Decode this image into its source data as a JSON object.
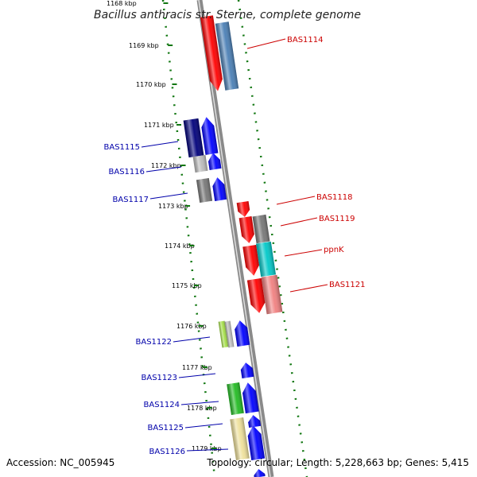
{
  "title": "Bacillus anthracis str. Sterne, complete genome",
  "accession": "Accession: NC_005945",
  "summary": "Topology: circular; Length: 5,228,663 bp; Genes: 5,415",
  "scale_labels": [
    "1168 kbp",
    "1169 kbp",
    "1170 kbp",
    "1171 kbp",
    "1172 kbp",
    "1173 kbp",
    "1174 kbp",
    "1175 kbp",
    "1176 kbp",
    "1177 kbp",
    "1178 kbp",
    "1179 kbp"
  ],
  "colors": {
    "forward_label": "#cc0000",
    "reverse_label": "#0000aa",
    "backbone": "#8a8a8a",
    "scale_dots": "#117711",
    "red": "#ff0000",
    "steelblue": "#4a7fb5",
    "navy": "#00007a",
    "blue": "#0000ff",
    "gray": "#777777",
    "lightgray": "#bbbbbb",
    "cyan": "#00c8c8",
    "pink": "#f08080",
    "yellowgreen": "#a6e04a",
    "green": "#22bb22",
    "khaki": "#eee09a"
  },
  "genes": [
    {
      "id": "gene-bas1114",
      "label": "BAS1114",
      "strand": "forward"
    },
    {
      "id": "gene-bas1115",
      "label": "BAS1115",
      "strand": "reverse"
    },
    {
      "id": "gene-bas1116",
      "label": "BAS1116",
      "strand": "reverse"
    },
    {
      "id": "gene-bas1117",
      "label": "BAS1117",
      "strand": "reverse"
    },
    {
      "id": "gene-bas1118",
      "label": "BAS1118",
      "strand": "forward"
    },
    {
      "id": "gene-bas1119",
      "label": "BAS1119",
      "strand": "forward"
    },
    {
      "id": "gene-ppnk",
      "label": "ppnK",
      "strand": "forward"
    },
    {
      "id": "gene-bas1121",
      "label": "BAS1121",
      "strand": "forward"
    },
    {
      "id": "gene-bas1122",
      "label": "BAS1122",
      "strand": "reverse"
    },
    {
      "id": "gene-bas1123",
      "label": "BAS1123",
      "strand": "reverse"
    },
    {
      "id": "gene-bas1124",
      "label": "BAS1124",
      "strand": "reverse"
    },
    {
      "id": "gene-bas1125",
      "label": "BAS1125",
      "strand": "reverse"
    },
    {
      "id": "gene-bas1126",
      "label": "BAS1126",
      "strand": "reverse"
    }
  ]
}
